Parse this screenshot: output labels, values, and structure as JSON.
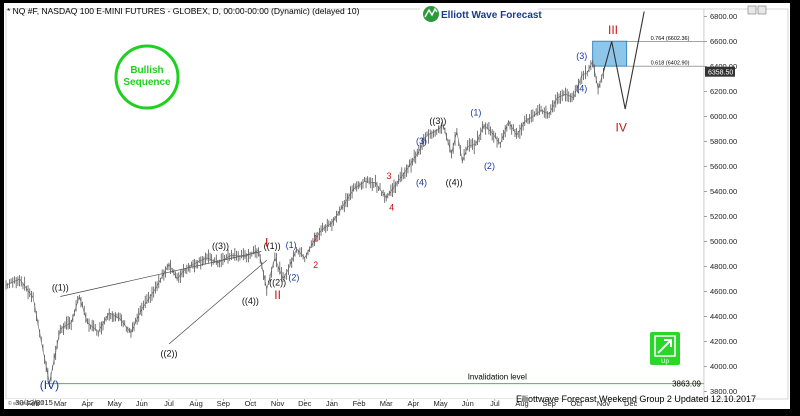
{
  "header": {
    "symbol_line": "* NQ #F, NASDAQ 100 E-MINI FUTURES - GLOBEX, D, 00:00-00:00 (Dynamic) (delayed 10)",
    "logo_text": "Elliott Wave Forecast"
  },
  "badges": {
    "bullish": "Bullish Sequence",
    "bullish_color": "#1fd11f",
    "up_label": "Up",
    "up_color": "#2bd62b"
  },
  "footer": {
    "esignal": "© eSignal, 2017",
    "updated": "Elliottwave Forecast Weekend Group 2 Updated 12.10.2017"
  },
  "chart_data": {
    "type": "line",
    "x_tick_labels": [
      "Feb",
      "Mar",
      "Apr",
      "May",
      "Jun",
      "Jul",
      "Aug",
      "Sep",
      "Oct",
      "Nov",
      "Dec",
      "Jan",
      "Feb",
      "Mar",
      "Apr",
      "May",
      "Jun",
      "Jul",
      "Aug",
      "Sep",
      "Oct",
      "Nov",
      "Dec"
    ],
    "first_date_label": "30/12/2015",
    "y_ticks": [
      3800,
      4000,
      4200,
      4400,
      4600,
      4800,
      5000,
      5200,
      5400,
      5600,
      5800,
      6000,
      6200,
      6400,
      6600,
      6800
    ],
    "ylim": [
      3740,
      6860
    ],
    "x_range_index": [
      0,
      25.7
    ],
    "current_price": "6358.50",
    "series": [
      {
        "x": [
          0,
          0.5,
          1.0,
          1.3,
          1.6,
          2.0,
          2.4,
          2.7,
          3.0,
          3.4,
          3.8,
          4.2,
          4.6,
          5.0,
          5.5,
          6.0,
          6.3,
          6.6,
          7.0,
          7.4,
          7.8,
          8.3,
          8.8,
          9.3,
          9.6,
          9.9,
          10.2,
          10.4,
          10.7,
          11.0,
          11.3,
          11.6,
          12.0,
          12.4,
          12.8,
          13.2,
          13.6,
          14.0,
          14.4,
          14.8,
          15.2,
          15.5,
          15.8,
          16.1,
          16.4,
          16.6,
          16.8,
          17.0,
          17.3,
          17.6,
          17.9,
          18.2,
          18.5,
          18.8,
          19.1,
          19.4,
          19.7,
          20.0,
          20.3,
          20.6,
          20.9,
          21.2,
          21.4,
          21.6,
          21.8,
          22.0
        ],
        "y": [
          4650,
          4700,
          4550,
          4200,
          3870,
          4300,
          4350,
          4560,
          4350,
          4280,
          4430,
          4380,
          4270,
          4460,
          4620,
          4820,
          4700,
          4780,
          4830,
          4870,
          4830,
          4890,
          4880,
          4930,
          4620,
          4870,
          4700,
          4780,
          4940,
          4870,
          4990,
          5090,
          5150,
          5280,
          5420,
          5480,
          5470,
          5350,
          5470,
          5590,
          5720,
          5850,
          5880,
          5930,
          5700,
          5880,
          5640,
          5760,
          5780,
          5930,
          5870,
          5780,
          5960,
          5850,
          5960,
          6000,
          6050,
          6020,
          6150,
          6180,
          6150,
          6330,
          6350,
          6440,
          6220,
          6360
        ]
      }
    ],
    "projection": {
      "x": [
        22.0,
        22.3,
        22.8,
        23.5
      ],
      "y": [
        6360,
        6600,
        6060,
        6840
      ]
    },
    "target_zone": {
      "x_start": 21.6,
      "x_end": 22.85,
      "y_low": 6403,
      "y_high": 6602,
      "labels": [
        "0.764 (6602.36)",
        "0.618 (6402.90)"
      ]
    },
    "invalidation": {
      "value": 3863.09,
      "label": "Invalidation level",
      "value_label": "3863.09"
    },
    "channel_lines": [
      {
        "x": [
          2.0,
          9.4
        ],
        "y": [
          4560,
          4920
        ]
      },
      {
        "x": [
          6.0,
          9.6
        ],
        "y": [
          4180,
          4850
        ]
      }
    ],
    "wave_labels": [
      {
        "text": "(IV)",
        "x": 1.6,
        "y": 3820,
        "color": "#1a3aa0",
        "size": 12
      },
      {
        "text": "((1))",
        "x": 2.0,
        "y": 4610,
        "color": "#111111",
        "size": 9
      },
      {
        "text": "((2))",
        "x": 6.0,
        "y": 4080,
        "color": "#111111",
        "size": 9
      },
      {
        "text": "((3))",
        "x": 7.9,
        "y": 4940,
        "color": "#111111",
        "size": 9
      },
      {
        "text": "((4))",
        "x": 9.0,
        "y": 4500,
        "color": "#111111",
        "size": 9
      },
      {
        "text": "I",
        "x": 9.6,
        "y": 4960,
        "color": "#cc1111",
        "size": 12
      },
      {
        "text": "((1))",
        "x": 9.8,
        "y": 4940,
        "color": "#111111",
        "size": 9
      },
      {
        "text": "(1)",
        "x": 10.5,
        "y": 4950,
        "color": "#1a3aa0",
        "size": 9
      },
      {
        "text": "((2))",
        "x": 10.0,
        "y": 4650,
        "color": "#111111",
        "size": 9
      },
      {
        "text": "II",
        "x": 10.0,
        "y": 4540,
        "color": "#cc1111",
        "size": 12
      },
      {
        "text": "(2)",
        "x": 10.6,
        "y": 4690,
        "color": "#1a3aa0",
        "size": 9
      },
      {
        "text": "1",
        "x": 11.4,
        "y": 5000,
        "color": "#cc1111",
        "size": 9
      },
      {
        "text": "2",
        "x": 11.4,
        "y": 4790,
        "color": "#cc1111",
        "size": 9
      },
      {
        "text": "3",
        "x": 14.1,
        "y": 5500,
        "color": "#cc1111",
        "size": 9
      },
      {
        "text": "4",
        "x": 14.2,
        "y": 5250,
        "color": "#cc1111",
        "size": 9
      },
      {
        "text": "(3)",
        "x": 15.3,
        "y": 5780,
        "color": "#1a3aa0",
        "size": 9
      },
      {
        "text": "((3))",
        "x": 15.9,
        "y": 5940,
        "color": "#111111",
        "size": 9
      },
      {
        "text": "(4)",
        "x": 15.3,
        "y": 5450,
        "color": "#1a3aa0",
        "size": 9
      },
      {
        "text": "((4))",
        "x": 16.5,
        "y": 5450,
        "color": "#111111",
        "size": 9
      },
      {
        "text": "(1)",
        "x": 17.3,
        "y": 6010,
        "color": "#1a3aa0",
        "size": 9
      },
      {
        "text": "(2)",
        "x": 17.8,
        "y": 5580,
        "color": "#1a3aa0",
        "size": 9
      },
      {
        "text": "(3)",
        "x": 21.2,
        "y": 6460,
        "color": "#1a3aa0",
        "size": 9
      },
      {
        "text": "(4)",
        "x": 21.2,
        "y": 6200,
        "color": "#1a3aa0",
        "size": 9
      },
      {
        "text": "III",
        "x": 22.35,
        "y": 6660,
        "color": "#cc1111",
        "size": 12
      },
      {
        "text": "IV",
        "x": 22.65,
        "y": 5880,
        "color": "#cc1111",
        "size": 12
      }
    ]
  }
}
